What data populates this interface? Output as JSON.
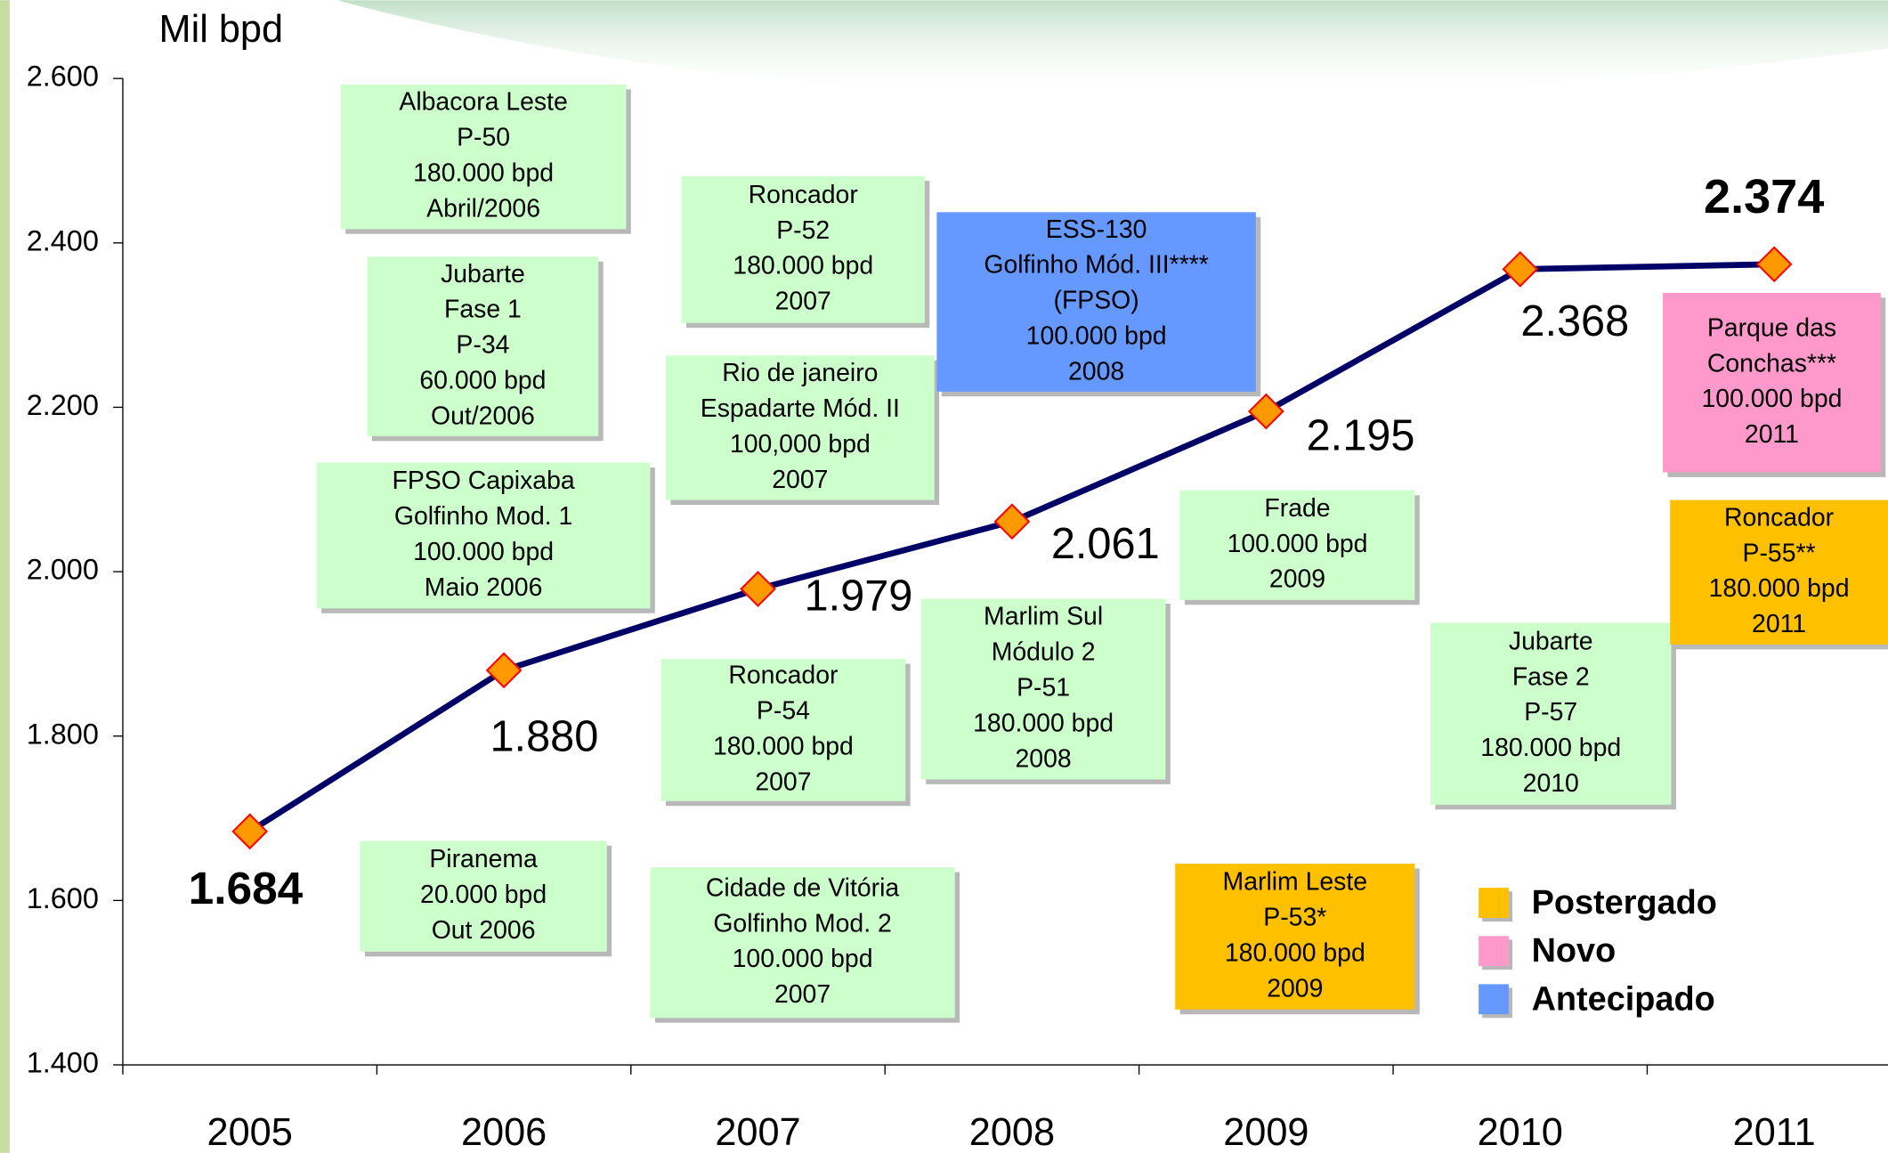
{
  "chart_data": {
    "type": "line",
    "y_label": "Mil bpd",
    "categories": [
      "2005",
      "2006",
      "2007",
      "2008",
      "2009",
      "2010",
      "2011"
    ],
    "values": [
      1684,
      1880,
      1979,
      2061,
      2195,
      2368,
      2374
    ],
    "value_labels": [
      "1.684",
      "1.880",
      "1.979",
      "2.061",
      "2.195",
      "2.368",
      "2.374"
    ],
    "color": "#000066",
    "marker_color": "#ff9900",
    "ylim": [
      1400,
      2600
    ],
    "yticks": [
      {
        "value": 1400,
        "label": "1.400"
      },
      {
        "value": 1600,
        "label": "1.600"
      },
      {
        "value": 1800,
        "label": "1.800"
      },
      {
        "value": 2000,
        "label": "2.000"
      },
      {
        "value": 2200,
        "label": "2.200"
      },
      {
        "value": 2400,
        "label": "2.400"
      },
      {
        "value": 2600,
        "label": "2.600"
      }
    ],
    "annotations": [
      {
        "lines": [
          "Albacora Leste",
          "P-50",
          "180.000 bpd",
          "Abril/2006"
        ],
        "color": "#ccffcc"
      },
      {
        "lines": [
          "Jubarte",
          "Fase 1",
          "P-34",
          "60.000 bpd",
          "Out/2006"
        ],
        "color": "#ccffcc"
      },
      {
        "lines": [
          "FPSO Capixaba",
          "Golfinho Mod.  1",
          "100.000 bpd",
          "Maio 2006"
        ],
        "color": "#ccffcc"
      },
      {
        "lines": [
          "Piranema",
          "20.000 bpd",
          "Out 2006"
        ],
        "color": "#ccffcc"
      },
      {
        "lines": [
          "Roncador",
          "P-52",
          "180.000 bpd",
          "2007"
        ],
        "color": "#ccffcc"
      },
      {
        "lines": [
          "Rio de janeiro",
          "Espadarte Mód. II",
          "100,000 bpd",
          "2007"
        ],
        "color": "#ccffcc"
      },
      {
        "lines": [
          "Roncador",
          "P-54",
          "180.000 bpd",
          "2007"
        ],
        "color": "#ccffcc"
      },
      {
        "lines": [
          "Cidade de Vitória",
          "Golfinho Mod. 2",
          "100.000 bpd",
          "2007"
        ],
        "color": "#ccffcc"
      },
      {
        "lines": [
          "ESS-130",
          "Golfinho Mód. III****",
          "(FPSO)",
          "100.000 bpd",
          "2008"
        ],
        "color": "#6699ff"
      },
      {
        "lines": [
          "Marlim Sul",
          "Módulo 2",
          "P-51",
          "180.000 bpd",
          "2008"
        ],
        "color": "#ccffcc"
      },
      {
        "lines": [
          "Frade",
          "100.000 bpd",
          "2009"
        ],
        "color": "#ccffcc"
      },
      {
        "lines": [
          "Marlim Leste",
          "P-53*",
          "180.000 bpd",
          "2009"
        ],
        "color": "#ffc000"
      },
      {
        "lines": [
          "Jubarte",
          "Fase 2",
          "P-57",
          "180.000 bpd",
          "2010"
        ],
        "color": "#ccffcc"
      },
      {
        "lines": [
          "Parque das",
          "Conchas***",
          "100.000 bpd",
          "2011"
        ],
        "color": "#ff99cc"
      },
      {
        "lines": [
          "Roncador",
          "P-55**",
          "180.000 bpd",
          "2011"
        ],
        "color": "#ffc000"
      }
    ],
    "legend": [
      {
        "name": "Postergado",
        "color": "#ffc000"
      },
      {
        "name": "Novo",
        "color": "#ff99cc"
      },
      {
        "name": "Antecipado",
        "color": "#6699ff"
      }
    ]
  }
}
